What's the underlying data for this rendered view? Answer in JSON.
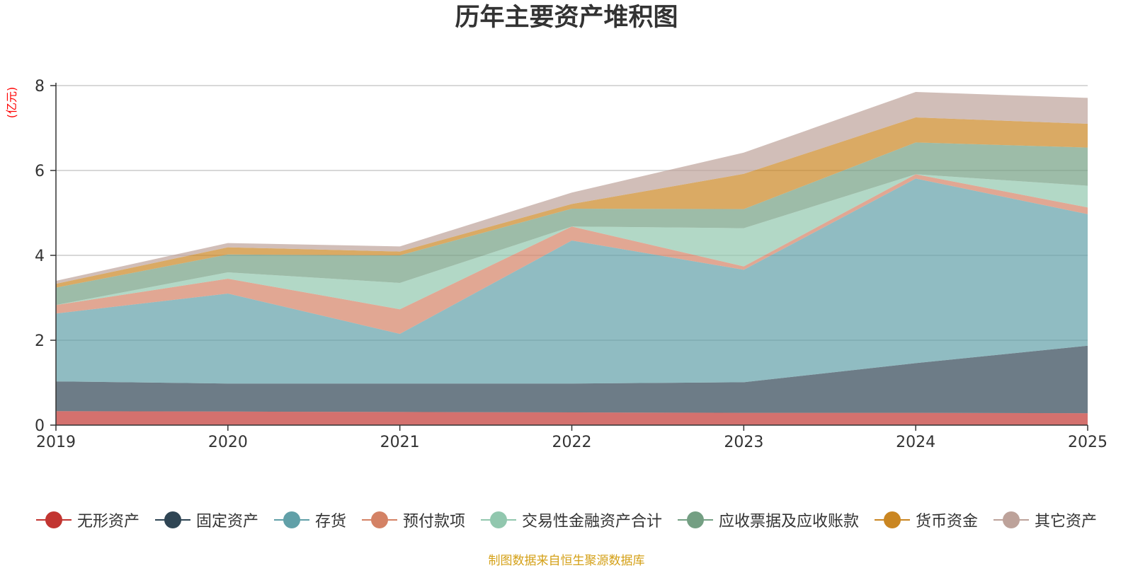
{
  "chart_data": {
    "type": "area",
    "stacked": true,
    "title": "历年主要资产堆积图",
    "ylabel": "(亿元)",
    "xlabel": "",
    "x": [
      "2019",
      "2020",
      "2021",
      "2022",
      "2023",
      "2024",
      "2025"
    ],
    "ylim": [
      0,
      8
    ],
    "yticks": [
      0,
      2,
      4,
      6,
      8
    ],
    "grid": true,
    "legend_position": "bottom",
    "series": [
      {
        "name": "无形资产",
        "color": "#c23531",
        "values": [
          0.33,
          0.32,
          0.31,
          0.3,
          0.29,
          0.29,
          0.28
        ]
      },
      {
        "name": "固定资产",
        "color": "#2f4554",
        "values": [
          0.7,
          0.66,
          0.67,
          0.68,
          0.72,
          1.17,
          1.59
        ]
      },
      {
        "name": "存货",
        "color": "#61a0a8",
        "values": [
          1.6,
          2.12,
          1.17,
          3.37,
          2.65,
          4.35,
          3.1
        ]
      },
      {
        "name": "预付款项",
        "color": "#d48265",
        "values": [
          0.2,
          0.35,
          0.58,
          0.33,
          0.08,
          0.1,
          0.16
        ]
      },
      {
        "name": "交易性金融资产合计",
        "color": "#91c7ae",
        "values": [
          0.0,
          0.15,
          0.62,
          0.0,
          0.9,
          0.0,
          0.51
        ]
      },
      {
        "name": "应收票据及应收账款",
        "color": "#749f83",
        "values": [
          0.41,
          0.42,
          0.65,
          0.42,
          0.45,
          0.75,
          0.9
        ]
      },
      {
        "name": "货币资金",
        "color": "#ca8622",
        "values": [
          0.09,
          0.17,
          0.09,
          0.11,
          0.83,
          0.59,
          0.56
        ]
      },
      {
        "name": "其它资产",
        "color": "#bda29a",
        "values": [
          0.07,
          0.1,
          0.12,
          0.27,
          0.5,
          0.6,
          0.61
        ]
      }
    ]
  },
  "source_note": "制图数据来自恒生聚源数据库",
  "colors": {
    "title": "#333333",
    "axis_label": "#ff0000",
    "axis_line": "#333333",
    "grid": "#cccccc",
    "source_note": "#d4a017"
  }
}
